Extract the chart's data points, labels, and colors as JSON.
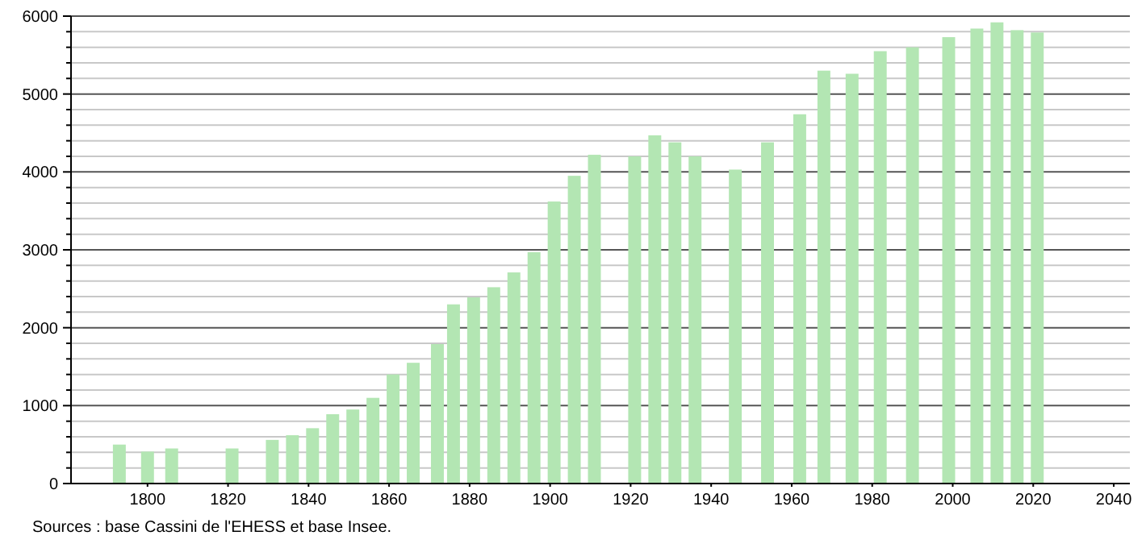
{
  "chart_data": {
    "type": "bar",
    "x": [
      1793,
      1800,
      1806,
      1821,
      1831,
      1836,
      1841,
      1846,
      1851,
      1856,
      1861,
      1866,
      1872,
      1876,
      1881,
      1886,
      1891,
      1896,
      1901,
      1906,
      1911,
      1921,
      1926,
      1931,
      1936,
      1946,
      1954,
      1962,
      1968,
      1975,
      1982,
      1990,
      1999,
      2006,
      2011,
      2016,
      2021
    ],
    "values": [
      500,
      410,
      450,
      450,
      560,
      620,
      710,
      890,
      950,
      1100,
      1400,
      1550,
      1790,
      2300,
      2390,
      2520,
      2710,
      2970,
      3620,
      3950,
      4220,
      4200,
      4470,
      4380,
      4200,
      4030,
      4380,
      4740,
      5300,
      5260,
      5550,
      5600,
      5730,
      5840,
      5920,
      5820,
      5790
    ],
    "color": "#b3e6b3",
    "xlim": [
      1781,
      2044
    ],
    "xticks": [
      1800,
      1820,
      1840,
      1860,
      1880,
      1900,
      1920,
      1940,
      1960,
      1980,
      2000,
      2020,
      2040
    ],
    "ylim": [
      0,
      6000
    ],
    "yticks": [
      0,
      {
        "value": 200,
        "label": null
      },
      {
        "value": 400,
        "label": null
      },
      {
        "value": 600,
        "label": null
      },
      {
        "value": 800,
        "label": null
      },
      1000,
      {
        "value": 1200,
        "label": null
      },
      {
        "value": 1400,
        "label": null
      },
      {
        "value": 1600,
        "label": null
      },
      {
        "value": 1800,
        "label": null
      },
      2000,
      {
        "value": 2200,
        "label": null
      },
      {
        "value": 2400,
        "label": null
      },
      {
        "value": 2600,
        "label": null
      },
      {
        "value": 2800,
        "label": null
      },
      3000,
      {
        "value": 3200,
        "label": null
      },
      {
        "value": 3400,
        "label": null
      },
      {
        "value": 3600,
        "label": null
      },
      {
        "value": 3800,
        "label": null
      },
      4000,
      {
        "value": 4200,
        "label": null
      },
      {
        "value": 4400,
        "label": null
      },
      {
        "value": 4600,
        "label": null
      },
      {
        "value": 4800,
        "label": null
      },
      5000,
      {
        "value": 5200,
        "label": null
      },
      {
        "value": 5400,
        "label": null
      },
      {
        "value": 5600,
        "label": null
      },
      {
        "value": 5800,
        "label": null
      },
      6000
    ],
    "grid": "y",
    "annotations": [
      "Sources : base Cassini de l'EHESS et base Insee."
    ]
  }
}
